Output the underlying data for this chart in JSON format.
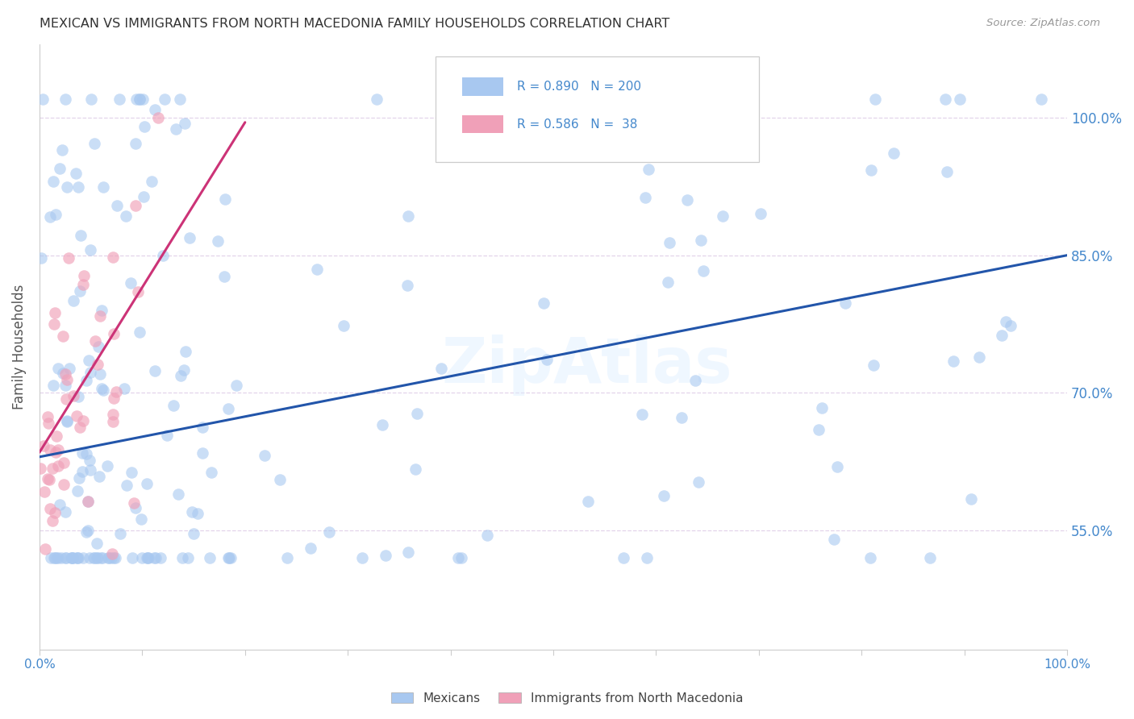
{
  "title": "MEXICAN VS IMMIGRANTS FROM NORTH MACEDONIA FAMILY HOUSEHOLDS CORRELATION CHART",
  "source": "Source: ZipAtlas.com",
  "ylabel": "Family Households",
  "watermark": "ZipAtlas",
  "mexican_R": 0.89,
  "mexican_N": 200,
  "macedonia_R": 0.586,
  "macedonia_N": 38,
  "mexican_color": "#a8c8f0",
  "macedonia_color": "#f0a0b8",
  "trendline_mexican_color": "#2255aa",
  "trendline_macedonia_color": "#cc3377",
  "background_color": "#ffffff",
  "grid_color": "#e0d0e8",
  "axis_color": "#cccccc",
  "title_color": "#333333",
  "right_axis_label_color": "#4488cc",
  "seed": 12345,
  "mex_intercept": 0.63,
  "mex_slope": 0.22,
  "mac_intercept": 0.635,
  "mac_slope": 1.8,
  "ylim_low": 0.42,
  "ylim_high": 1.08,
  "xlim_low": 0.0,
  "xlim_high": 1.0,
  "ytick_vals": [
    0.55,
    0.7,
    0.85,
    1.0
  ],
  "ytick_labels": [
    "55.0%",
    "70.0%",
    "85.0%",
    "100.0%"
  ]
}
